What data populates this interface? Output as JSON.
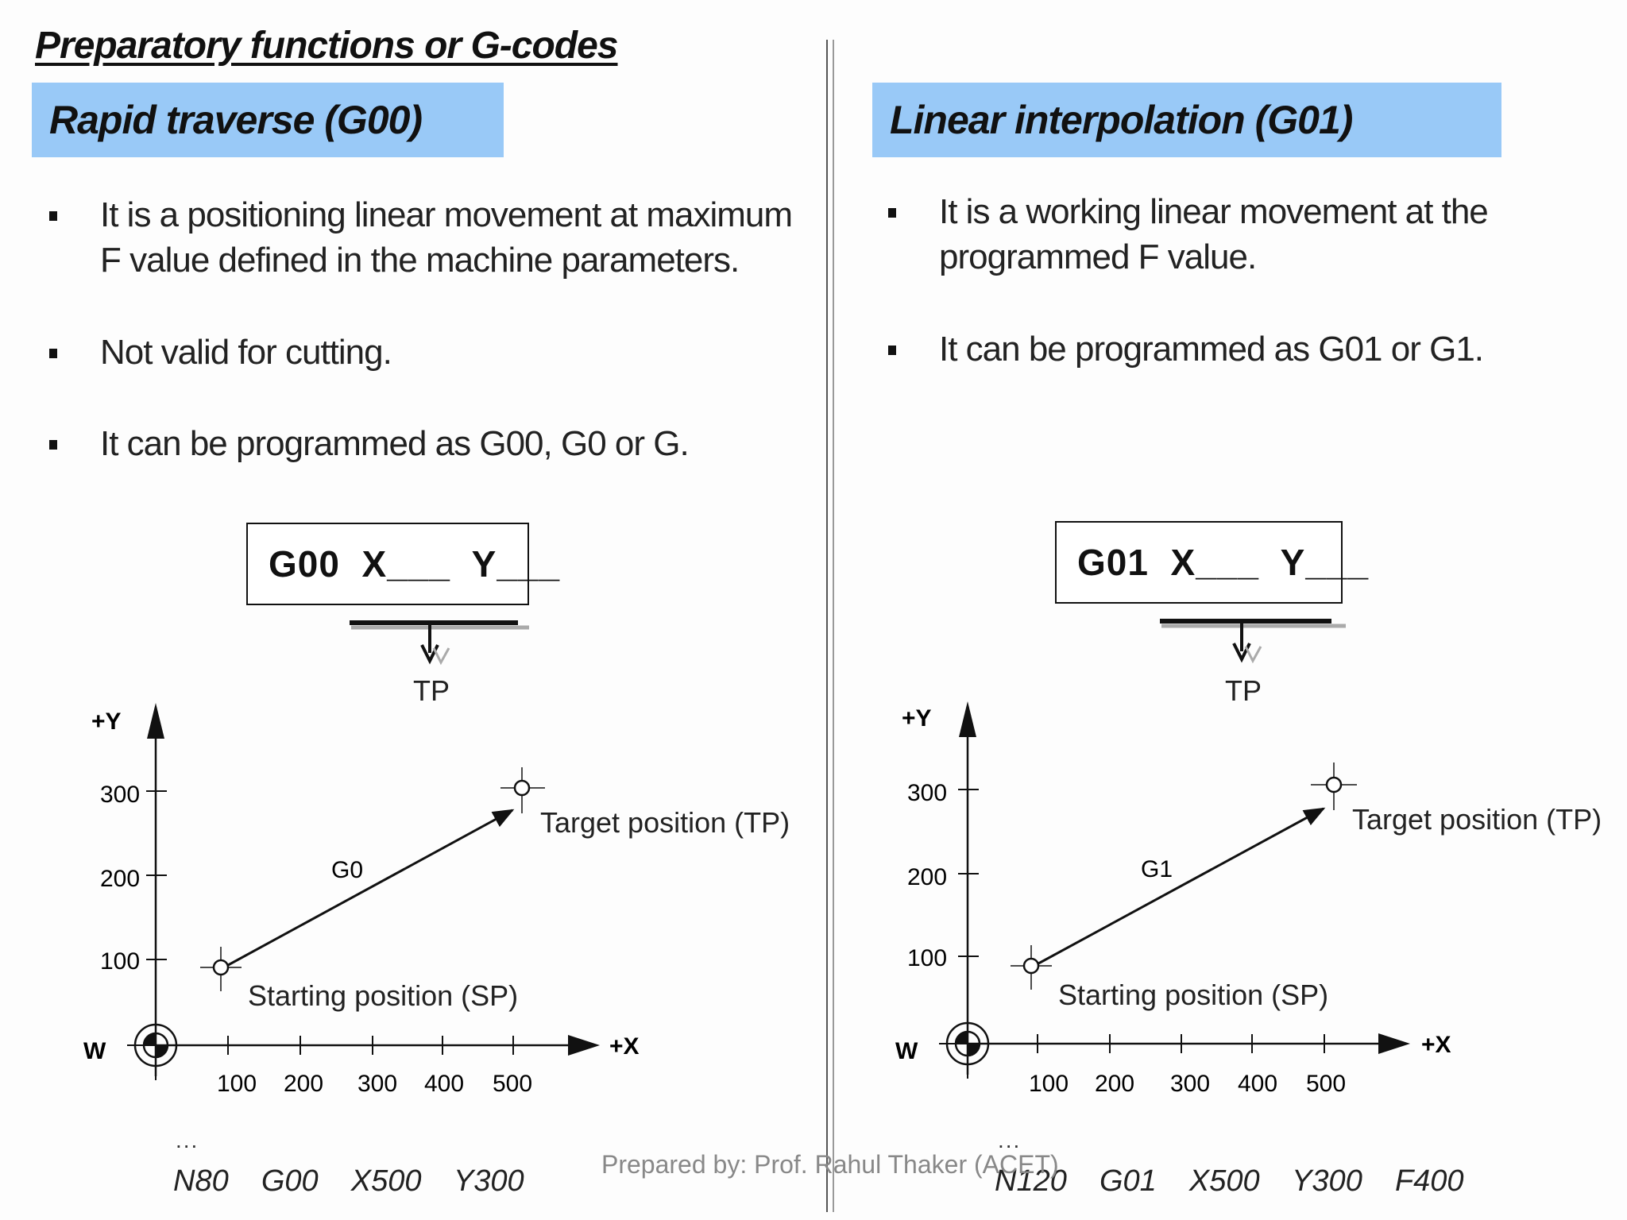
{
  "title": "Preparatory functions or G-codes",
  "left": {
    "banner": "Rapid traverse (G00)",
    "bullets": [
      "It is a positioning linear movement at maximum F value defined in the machine parameters.",
      "Not valid for cutting.",
      "It can be programmed as G00, G0 or G."
    ],
    "code_box": "G00  X___  Y___",
    "tp_label": "TP",
    "diagram": {
      "y_axis_label": "+Y",
      "x_axis_label": "+X",
      "origin_label": "W",
      "y_ticks": [
        "100",
        "200",
        "300"
      ],
      "x_ticks": [
        "100",
        "200",
        "300",
        "400",
        "500"
      ],
      "path_label": "G0",
      "start_label": "Starting position (SP)",
      "target_label": "Target position (TP)"
    },
    "ellipsis": "...",
    "nc_block": "N80  G00  X500  Y300"
  },
  "right": {
    "banner": "Linear interpolation (G01)",
    "bullets": [
      "It is a working linear movement at the programmed F value.",
      "It can be programmed as G01 or G1."
    ],
    "code_box": "G01  X___  Y___",
    "tp_label": "TP",
    "diagram": {
      "y_axis_label": "+Y",
      "x_axis_label": "+X",
      "origin_label": "W",
      "y_ticks": [
        "100",
        "200",
        "300"
      ],
      "x_ticks": [
        "100",
        "200",
        "300",
        "400",
        "500"
      ],
      "path_label": "G1",
      "start_label": "Starting position (SP)",
      "target_label": "Target position (TP)"
    },
    "ellipsis": "...",
    "nc_block": "N120  G01  X500  Y300  F400"
  },
  "footer": "Prepared by: Prof. Rahul Thaker (ACET)",
  "colors": {
    "banner": "#99c9f7",
    "text": "#111111",
    "footer": "#888888"
  }
}
